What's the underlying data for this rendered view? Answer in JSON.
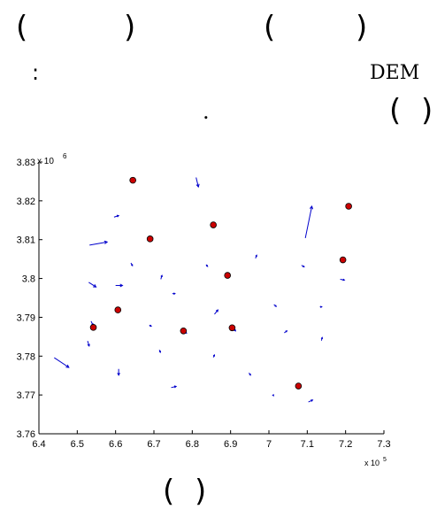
{
  "text_fragments": {
    "row1_a_open": "(",
    "row1_a_close": ")",
    "row1_b_open": "(",
    "row1_b_close": ")",
    "row2_colon": ":",
    "row2_dem": "DEM",
    "row3_dot": ".",
    "row3_open": "(",
    "row3_close": ")",
    "caption_open": "(",
    "caption_close": ")"
  },
  "chart_data": {
    "type": "scatter",
    "xlim": [
      640000,
      730000
    ],
    "ylim": [
      3760000,
      3830000
    ],
    "x_ticks": [
      "6.4",
      "6.5",
      "6.6",
      "6.7",
      "6.8",
      "6.9",
      "7",
      "7.1",
      "7.2",
      "7.3"
    ],
    "y_ticks": [
      "3.76",
      "3.77",
      "3.78",
      "3.79",
      "3.8",
      "3.81",
      "3.82",
      "3.83"
    ],
    "x_multiplier": "x 10",
    "x_exponent": "5",
    "y_multiplier": "x 10",
    "y_exponent": "6",
    "colors": {
      "points": "#cc0000",
      "arrows": "#0000cc"
    },
    "grid": false,
    "points": [
      {
        "x": 664500,
        "y": 3825300
      },
      {
        "x": 720800,
        "y": 3818600
      },
      {
        "x": 685500,
        "y": 3813800
      },
      {
        "x": 669000,
        "y": 3810200
      },
      {
        "x": 719300,
        "y": 3804800
      },
      {
        "x": 689200,
        "y": 3800800
      },
      {
        "x": 660600,
        "y": 3791900
      },
      {
        "x": 654200,
        "y": 3787400
      },
      {
        "x": 677700,
        "y": 3786500
      },
      {
        "x": 690400,
        "y": 3787300
      },
      {
        "x": 707700,
        "y": 3772300
      }
    ],
    "arrows": [
      {
        "x0": 681000,
        "y0": 3826000,
        "x1": 681600,
        "y1": 3823600
      },
      {
        "x0": 709500,
        "y0": 3810400,
        "x1": 711200,
        "y1": 3818600
      },
      {
        "x0": 659600,
        "y0": 3815800,
        "x1": 660800,
        "y1": 3816200
      },
      {
        "x0": 653200,
        "y0": 3808600,
        "x1": 657800,
        "y1": 3809400
      },
      {
        "x0": 664000,
        "y0": 3804000,
        "x1": 664400,
        "y1": 3803300
      },
      {
        "x0": 683600,
        "y0": 3803600,
        "x1": 684000,
        "y1": 3803100
      },
      {
        "x0": 696500,
        "y0": 3805200,
        "x1": 696800,
        "y1": 3806000
      },
      {
        "x0": 708500,
        "y0": 3803400,
        "x1": 709200,
        "y1": 3803000
      },
      {
        "x0": 653000,
        "y0": 3799000,
        "x1": 654900,
        "y1": 3797800
      },
      {
        "x0": 660000,
        "y0": 3798200,
        "x1": 661800,
        "y1": 3798200
      },
      {
        "x0": 671800,
        "y0": 3799800,
        "x1": 672100,
        "y1": 3800800
      },
      {
        "x0": 674800,
        "y0": 3796100,
        "x1": 675500,
        "y1": 3796100
      },
      {
        "x0": 718600,
        "y0": 3799800,
        "x1": 719700,
        "y1": 3799600
      },
      {
        "x0": 685800,
        "y0": 3790800,
        "x1": 686700,
        "y1": 3791900
      },
      {
        "x0": 701300,
        "y0": 3793300,
        "x1": 701900,
        "y1": 3792800
      },
      {
        "x0": 713300,
        "y0": 3792700,
        "x1": 713800,
        "y1": 3792700
      },
      {
        "x0": 653600,
        "y0": 3789000,
        "x1": 654100,
        "y1": 3788000
      },
      {
        "x0": 668800,
        "y0": 3788000,
        "x1": 669300,
        "y1": 3787700
      },
      {
        "x0": 652700,
        "y0": 3783900,
        "x1": 653100,
        "y1": 3782600
      },
      {
        "x0": 644000,
        "y0": 3779600,
        "x1": 647800,
        "y1": 3777100
      },
      {
        "x0": 677900,
        "y0": 3786500,
        "x1": 678500,
        "y1": 3785900
      },
      {
        "x0": 690600,
        "y0": 3787300,
        "x1": 691300,
        "y1": 3786500
      },
      {
        "x0": 704000,
        "y0": 3786000,
        "x1": 704700,
        "y1": 3786500
      },
      {
        "x0": 713700,
        "y0": 3784000,
        "x1": 713900,
        "y1": 3784800
      },
      {
        "x0": 671400,
        "y0": 3781600,
        "x1": 671700,
        "y1": 3781000
      },
      {
        "x0": 685500,
        "y0": 3779700,
        "x1": 685800,
        "y1": 3780300
      },
      {
        "x0": 660800,
        "y0": 3776700,
        "x1": 660800,
        "y1": 3775100
      },
      {
        "x0": 694800,
        "y0": 3775700,
        "x1": 695200,
        "y1": 3775100
      },
      {
        "x0": 674500,
        "y0": 3771900,
        "x1": 675800,
        "y1": 3772200
      },
      {
        "x0": 701100,
        "y0": 3770000,
        "x1": 701200,
        "y1": 3769800
      },
      {
        "x0": 710300,
        "y0": 3768200,
        "x1": 711400,
        "y1": 3768700
      }
    ]
  }
}
